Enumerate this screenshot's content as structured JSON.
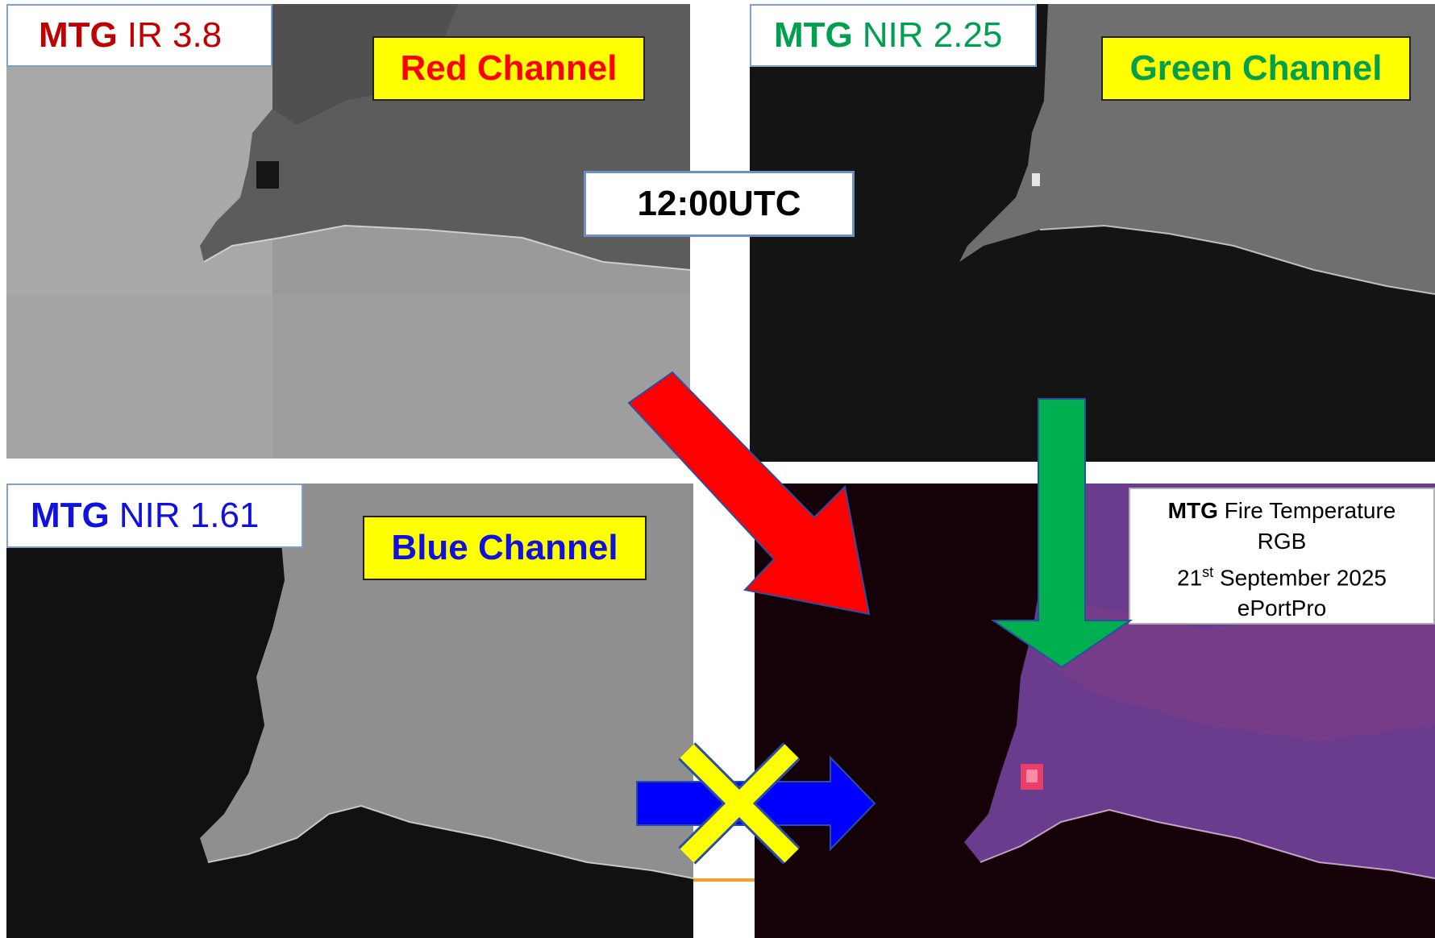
{
  "panels": {
    "red": {
      "sensor": "MTG",
      "band": "IR 3.8",
      "channel_label": "Red Channel",
      "band_color": "#c00000",
      "channel_color": "#ff0000"
    },
    "green": {
      "sensor": "MTG",
      "band": "NIR 2.25",
      "channel_label": "Green Channel",
      "band_color": "#00a050",
      "channel_color": "#00a050"
    },
    "blue": {
      "sensor": "MTG",
      "band": "NIR 1.61",
      "channel_label": "Blue Channel",
      "band_color": "#1010e0",
      "channel_color": "#1010e0"
    }
  },
  "time_label": "12:00UTC",
  "composite": {
    "sensor": "MTG",
    "title_rest": "Fire Temperature",
    "title_line2": "RGB",
    "date_day": "21",
    "date_suffix": "st",
    "date_rest": "September 2025",
    "credit": "ePortPro"
  },
  "arrows": {
    "red_arrow_color": "#ff0000",
    "green_arrow_color": "#00b050",
    "blue_arrow_color": "#0000ff",
    "cross_color": "#ffff00"
  }
}
